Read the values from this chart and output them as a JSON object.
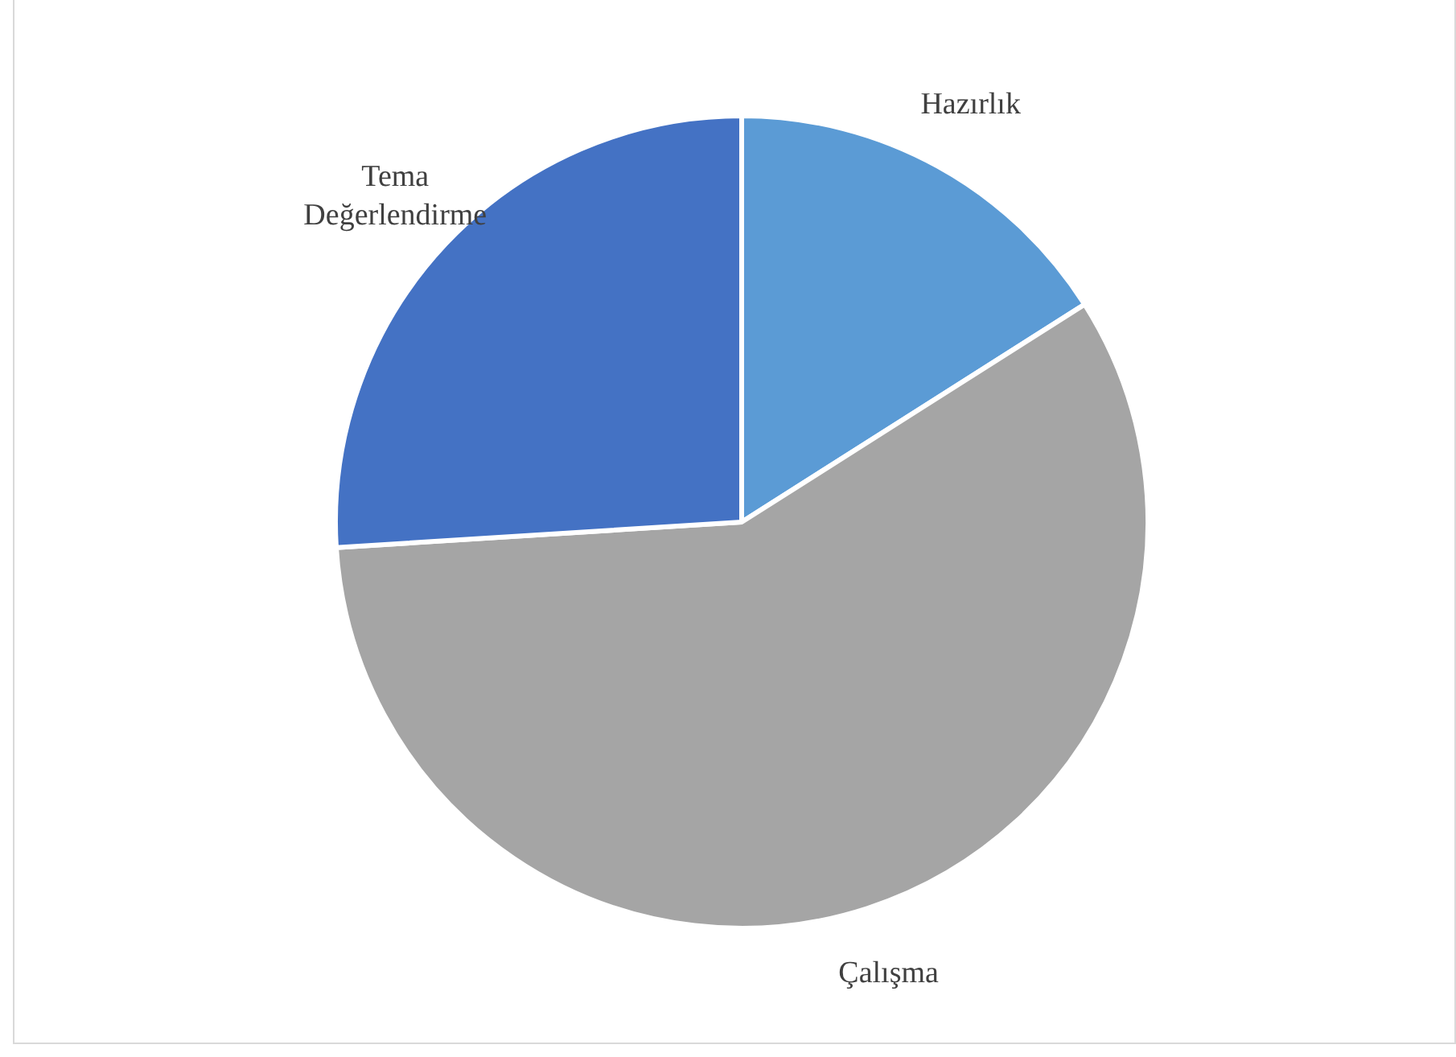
{
  "chart_data": {
    "type": "pie",
    "categories": [
      "Hazırlık",
      "Çalışma",
      "Tema Değerlendirme"
    ],
    "values": [
      16,
      58,
      26
    ],
    "colors": [
      "#5b9bd5",
      "#a5a5a5",
      "#4472c4"
    ],
    "legend": false
  }
}
